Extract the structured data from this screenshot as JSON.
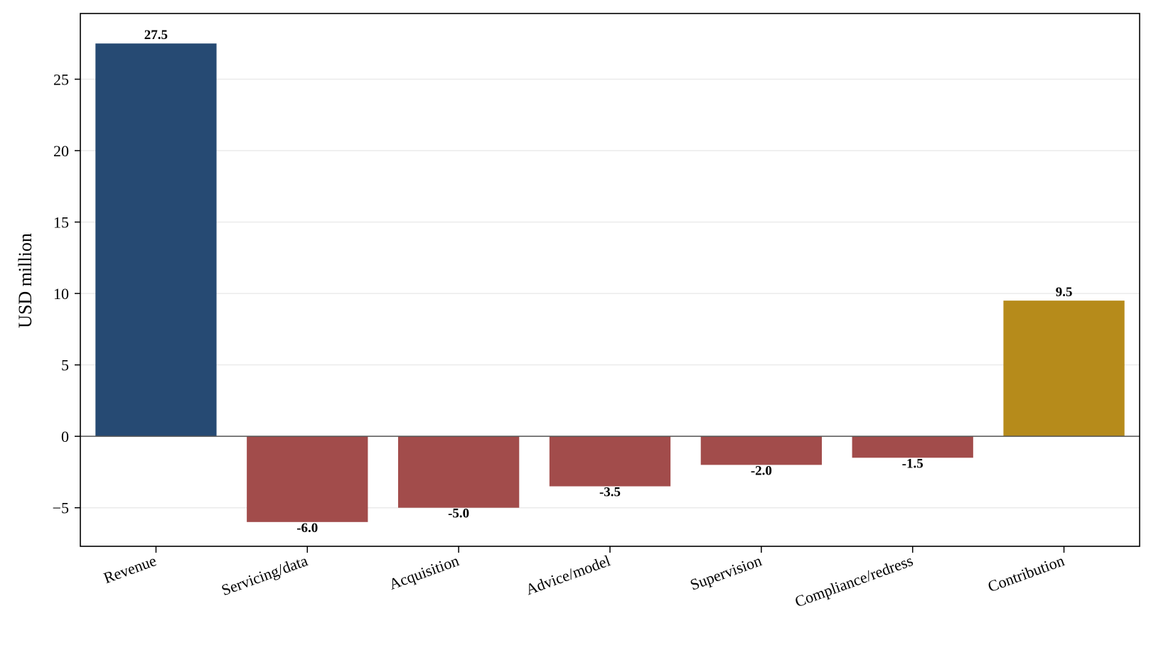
{
  "chart_data": {
    "type": "bar",
    "title": "",
    "xlabel": "",
    "ylabel": "USD million",
    "categories": [
      "Revenue",
      "Servicing/data",
      "Acquisition",
      "Advice/model",
      "Supervision",
      "Compliance/redress",
      "Contribution"
    ],
    "values": [
      27.5,
      -6.0,
      -5.0,
      -3.5,
      -2.0,
      -1.5,
      9.5
    ],
    "value_labels": [
      "27.5",
      "-6.0",
      "-5.0",
      "-3.5",
      "-2.0",
      "-1.5",
      "9.5"
    ],
    "ylim": [
      -7.7,
      29.6
    ],
    "yticks": [
      -5,
      0,
      5,
      10,
      15,
      20,
      25
    ],
    "ytick_labels": [
      "−5",
      "0",
      "5",
      "10",
      "15",
      "20",
      "25"
    ],
    "grid": "horizontal",
    "legend": "none",
    "colors": {
      "revenue": "#264a73",
      "cost": "#a24c4b",
      "contribution": "#b68b1b",
      "grid": "#ebebeb",
      "zero_line": "#555555",
      "axis": "#000000"
    },
    "bar_colors": [
      "#264a73",
      "#a24c4b",
      "#a24c4b",
      "#a24c4b",
      "#a24c4b",
      "#a24c4b",
      "#b68b1b"
    ]
  }
}
